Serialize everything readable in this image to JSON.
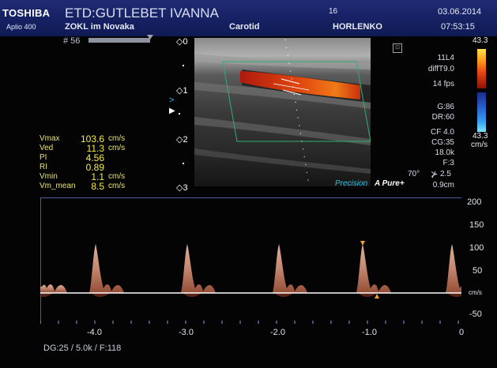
{
  "header": {
    "brand": "TOSHIBA",
    "model": "Aplio 400",
    "patient_title": "ETD:GUTLEBET IVANNA",
    "institution": "ZOKL im Novaka",
    "preset": "Carotid",
    "number": "16",
    "operator": "HORLENKO",
    "date": "03.06.2014",
    "time": "07:53:15"
  },
  "frame": {
    "label": "# 56"
  },
  "depth_marks": [
    "0",
    "1",
    "2",
    "3"
  ],
  "image_params": {
    "probe": "11L4",
    "mode": "diffT9.0",
    "fps": "14 fps",
    "gain": "G:86",
    "dynamic_range": "DR:60",
    "cf": "CF 4.0",
    "cg": "CG:35",
    "prf": "18.0k",
    "filter": "F:3",
    "angle": "70°",
    "angle_correction": "2.5",
    "sample_volume": "0.9cm"
  },
  "color_bar": {
    "top": "43.3",
    "bottom": "43.3",
    "unit": "cm/s"
  },
  "image_labels": {
    "precision": "Precision",
    "pure": "A Pure+"
  },
  "measurements": [
    {
      "label": "Vmax",
      "value": "103.6",
      "unit": "cm/s"
    },
    {
      "label": "Ved",
      "value": "11.3",
      "unit": "cm/s"
    },
    {
      "label": "PI",
      "value": "4.56",
      "unit": ""
    },
    {
      "label": "RI",
      "value": "0.89",
      "unit": ""
    },
    {
      "label": "Vmin",
      "value": "1.1",
      "unit": "cm/s"
    },
    {
      "label": "Vm_mean",
      "value": "8.5",
      "unit": "cm/s"
    }
  ],
  "spectrum": {
    "velocity_scale": [
      "200",
      "150",
      "100",
      "50",
      "cm/s",
      "-50"
    ],
    "time_scale": [
      "-4.0",
      "-3.0",
      "-2.0",
      "-1.0",
      "0"
    ]
  },
  "footer": {
    "text": "DG:25  / 5.0k    / F:118"
  },
  "colors": {
    "header": "#1a2468",
    "measurement": "#f4ea4d",
    "accent": "#2cc0e6"
  }
}
